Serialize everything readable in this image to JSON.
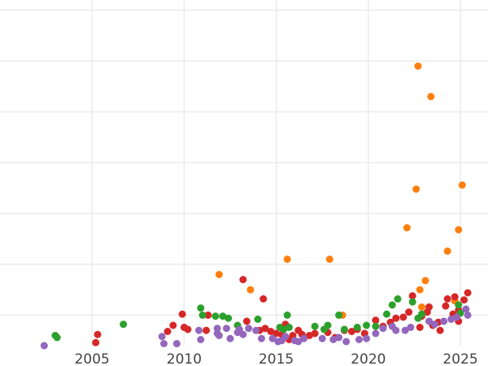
{
  "chart_data": {
    "type": "scatter",
    "title": "",
    "xlabel": "",
    "ylabel": "",
    "xlim": [
      2000,
      2026.5
    ],
    "ylim": [
      -3,
      31
    ],
    "grid": true,
    "x_ticks": [
      2005,
      2010,
      2015,
      2020,
      2025
    ],
    "x_tick_labels": [
      "2005",
      "2010",
      "2015",
      "2020",
      "2025"
    ],
    "y_ticks": [
      0,
      5,
      10,
      15,
      20,
      25,
      30
    ],
    "y_tick_labels": [
      "",
      "",
      "",
      "",
      "",
      "",
      ""
    ],
    "colors": {
      "purple": "#9467bd",
      "red": "#d62728",
      "green": "#2ca02c",
      "orange": "#ff7f0e",
      "grid": "#ebebeb",
      "background": "#ffffff"
    },
    "series": [
      {
        "color": "#ff7f0e",
        "points": [
          [
            2011.9,
            4.0
          ],
          [
            2013.6,
            2.5
          ],
          [
            2015.6,
            5.5
          ],
          [
            2017.9,
            5.5
          ],
          [
            2018.6,
            0.0
          ],
          [
            2022.1,
            8.6
          ],
          [
            2022.6,
            12.4
          ],
          [
            2022.7,
            24.5
          ],
          [
            2022.8,
            2.5
          ],
          [
            2022.9,
            0.8
          ],
          [
            2023.1,
            3.4
          ],
          [
            2023.4,
            21.5
          ],
          [
            2024.3,
            6.3
          ],
          [
            2024.7,
            1.4
          ],
          [
            2024.9,
            8.4
          ],
          [
            2025.1,
            12.8
          ]
        ]
      },
      {
        "color": "#d62728",
        "points": [
          [
            2005.2,
            -2.7
          ],
          [
            2005.3,
            -1.9
          ],
          [
            2009.1,
            -1.6
          ],
          [
            2009.4,
            -1.0
          ],
          [
            2009.9,
            0.1
          ],
          [
            2010.0,
            -1.2
          ],
          [
            2010.2,
            -1.4
          ],
          [
            2011.2,
            -1.5
          ],
          [
            2011.3,
            0.0
          ],
          [
            2013.2,
            3.5
          ],
          [
            2013.4,
            -0.6
          ],
          [
            2014.1,
            -1.5
          ],
          [
            2014.3,
            1.6
          ],
          [
            2014.4,
            -1.3
          ],
          [
            2014.7,
            -1.6
          ],
          [
            2015.0,
            -1.8
          ],
          [
            2015.3,
            -1.9
          ],
          [
            2015.5,
            -0.9
          ],
          [
            2015.7,
            -2.4
          ],
          [
            2015.9,
            -2.0
          ],
          [
            2016.2,
            -1.5
          ],
          [
            2016.4,
            -1.9
          ],
          [
            2016.8,
            -2.0
          ],
          [
            2017.1,
            -1.8
          ],
          [
            2017.8,
            -1.7
          ],
          [
            2018.2,
            -2.2
          ],
          [
            2018.7,
            -1.5
          ],
          [
            2019.1,
            -1.6
          ],
          [
            2019.4,
            -1.4
          ],
          [
            2019.8,
            -1.8
          ],
          [
            2020.4,
            -0.5
          ],
          [
            2020.8,
            -1.1
          ],
          [
            2021.2,
            -0.7
          ],
          [
            2021.5,
            -0.3
          ],
          [
            2021.9,
            -0.2
          ],
          [
            2022.2,
            0.3
          ],
          [
            2022.4,
            1.9
          ],
          [
            2022.8,
            -1.2
          ],
          [
            2022.9,
            -0.1
          ],
          [
            2023.2,
            0.3
          ],
          [
            2023.3,
            0.8
          ],
          [
            2023.5,
            -1.0
          ],
          [
            2023.8,
            -0.7
          ],
          [
            2023.9,
            -1.5
          ],
          [
            2024.2,
            0.9
          ],
          [
            2024.3,
            1.6
          ],
          [
            2024.6,
            0.1
          ],
          [
            2024.7,
            1.8
          ],
          [
            2024.9,
            0.5
          ],
          [
            2024.9,
            -0.6
          ],
          [
            2025.2,
            1.5
          ],
          [
            2025.4,
            2.2
          ]
        ]
      },
      {
        "color": "#2ca02c",
        "points": [
          [
            2003.0,
            -2.0
          ],
          [
            2003.1,
            -2.2
          ],
          [
            2006.7,
            -0.9
          ],
          [
            2010.9,
            0.7
          ],
          [
            2011.0,
            0.0
          ],
          [
            2011.7,
            -0.1
          ],
          [
            2012.1,
            -0.1
          ],
          [
            2012.4,
            -0.3
          ],
          [
            2012.9,
            -1.0
          ],
          [
            2014.0,
            -0.4
          ],
          [
            2015.2,
            -1.2
          ],
          [
            2015.4,
            -1.4
          ],
          [
            2015.6,
            0.0
          ],
          [
            2015.7,
            -1.2
          ],
          [
            2017.1,
            -1.1
          ],
          [
            2017.6,
            -1.4
          ],
          [
            2017.8,
            -1.0
          ],
          [
            2018.4,
            0.0
          ],
          [
            2018.7,
            -1.4
          ],
          [
            2019.4,
            -1.2
          ],
          [
            2019.9,
            -1.0
          ],
          [
            2020.4,
            -1.1
          ],
          [
            2021.0,
            0.1
          ],
          [
            2021.3,
            1.0
          ],
          [
            2021.6,
            1.6
          ],
          [
            2022.4,
            1.3
          ],
          [
            2022.7,
            -0.3
          ],
          [
            2022.9,
            0.1
          ],
          [
            2024.9,
            1.0
          ],
          [
            2025.0,
            0.2
          ]
        ]
      },
      {
        "color": "#9467bd",
        "points": [
          [
            2002.4,
            -3.0
          ],
          [
            2008.8,
            -2.1
          ],
          [
            2008.9,
            -2.8
          ],
          [
            2009.6,
            -2.8
          ],
          [
            2010.8,
            -1.5
          ],
          [
            2010.9,
            -2.4
          ],
          [
            2011.8,
            -1.3
          ],
          [
            2011.8,
            -1.8
          ],
          [
            2011.9,
            -2.0
          ],
          [
            2012.3,
            -1.3
          ],
          [
            2012.5,
            -2.3
          ],
          [
            2012.9,
            -1.7
          ],
          [
            2013.0,
            -1.4
          ],
          [
            2013.2,
            -1.9
          ],
          [
            2013.5,
            -1.3
          ],
          [
            2013.9,
            -1.5
          ],
          [
            2014.2,
            -2.3
          ],
          [
            2014.8,
            -2.3
          ],
          [
            2015.1,
            -2.6
          ],
          [
            2015.3,
            -2.5
          ],
          [
            2015.5,
            -2.1
          ],
          [
            2016.0,
            -2.5
          ],
          [
            2016.2,
            -2.6
          ],
          [
            2016.5,
            -2.3
          ],
          [
            2017.5,
            -2.3
          ],
          [
            2018.1,
            -2.4
          ],
          [
            2018.4,
            -2.2
          ],
          [
            2018.8,
            -2.6
          ],
          [
            2019.5,
            -2.4
          ],
          [
            2019.9,
            -2.3
          ],
          [
            2020.4,
            -1.8
          ],
          [
            2020.8,
            -1.3
          ],
          [
            2021.3,
            -1.1
          ],
          [
            2021.5,
            -1.5
          ],
          [
            2022.0,
            -1.5
          ],
          [
            2022.3,
            -1.2
          ],
          [
            2023.3,
            -0.6
          ],
          [
            2023.6,
            -0.9
          ],
          [
            2024.1,
            -0.6
          ],
          [
            2024.5,
            -0.4
          ],
          [
            2024.8,
            -0.2
          ],
          [
            2025.3,
            0.6
          ],
          [
            2025.4,
            0.0
          ]
        ]
      }
    ]
  }
}
